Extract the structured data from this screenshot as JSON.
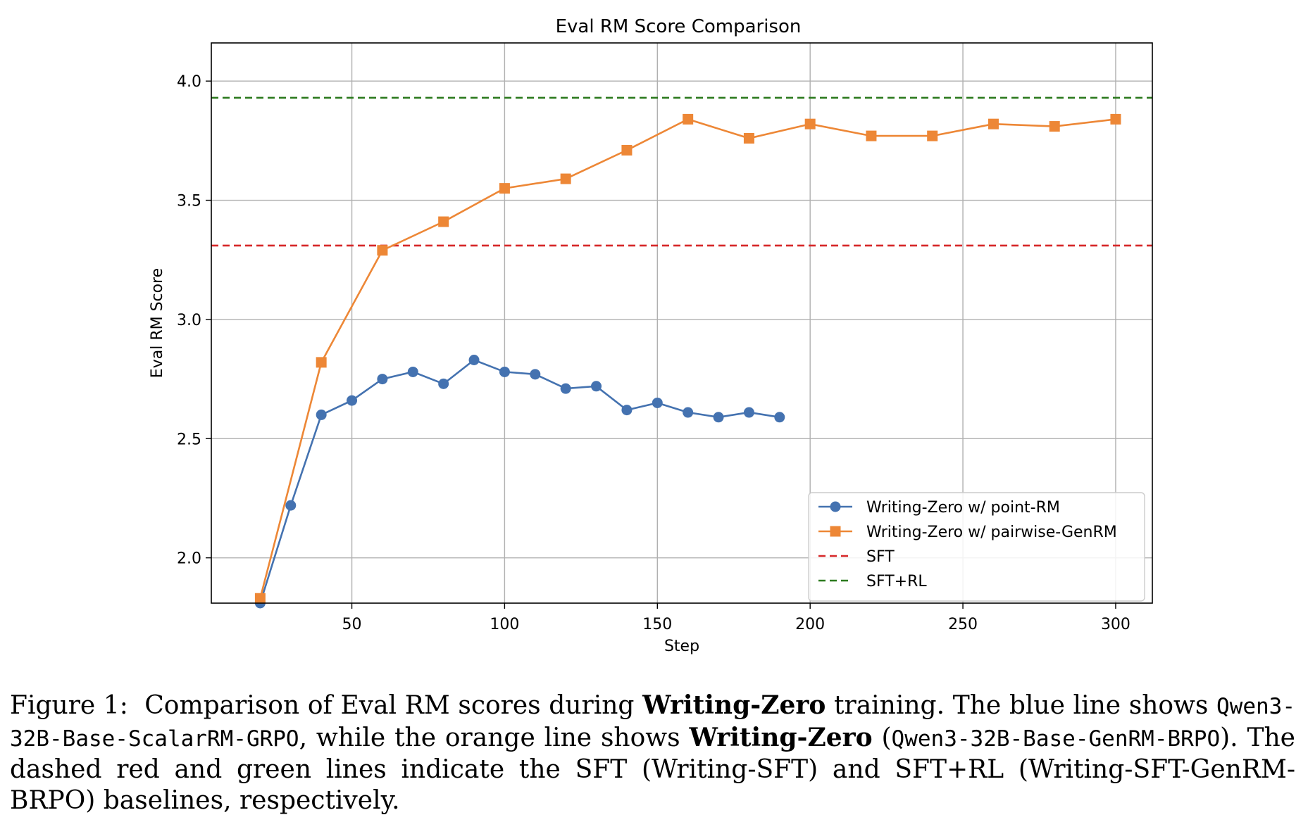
{
  "chart_data": {
    "type": "line",
    "title": "Eval RM Score Comparison",
    "xlabel": "Step",
    "ylabel": "Eval RM Score",
    "xlim": [
      4,
      312
    ],
    "ylim": [
      1.81,
      4.16
    ],
    "xticks": [
      50,
      100,
      150,
      200,
      250,
      300
    ],
    "yticks": [
      2.0,
      2.5,
      3.0,
      3.5,
      4.0
    ],
    "xtick_labels": [
      "50",
      "100",
      "150",
      "200",
      "250",
      "300"
    ],
    "ytick_labels": [
      "2.0",
      "2.5",
      "3.0",
      "3.5",
      "4.0"
    ],
    "grid": true,
    "legend_position": "lower right",
    "series": [
      {
        "name": "Writing-Zero w/ point-RM",
        "color": "#4472B0",
        "marker": "circle",
        "x": [
          20,
          30,
          40,
          50,
          60,
          70,
          80,
          90,
          100,
          110,
          120,
          130,
          140,
          150,
          160,
          170,
          180,
          190
        ],
        "y": [
          1.81,
          2.22,
          2.6,
          2.66,
          2.75,
          2.78,
          2.73,
          2.83,
          2.78,
          2.77,
          2.71,
          2.72,
          2.62,
          2.65,
          2.61,
          2.59,
          2.61,
          2.59
        ]
      },
      {
        "name": "Writing-Zero w/ pairwise-GenRM",
        "color": "#ED8736",
        "marker": "square",
        "x": [
          20,
          40,
          60,
          80,
          100,
          120,
          140,
          160,
          180,
          200,
          220,
          240,
          260,
          280,
          300
        ],
        "y": [
          1.83,
          2.82,
          3.29,
          3.41,
          3.55,
          3.59,
          3.71,
          3.84,
          3.76,
          3.82,
          3.77,
          3.77,
          3.82,
          3.81,
          3.84
        ]
      }
    ],
    "hlines": [
      {
        "name": "SFT",
        "color": "#D62728",
        "y": 3.31,
        "style": "dashed"
      },
      {
        "name": "SFT+RL",
        "color": "#2C7A1E",
        "y": 3.93,
        "style": "dashed"
      }
    ]
  },
  "caption": {
    "label": "Figure 1:",
    "t1": "Comparison of Eval RM scores during",
    "b1": "Writing-Zero",
    "t2": "training. The blue line shows",
    "code1": "Qwen3-32B-Base-ScalarRM-GRPO",
    "t3": ", while the orange line shows",
    "b2": "Writing-Zero",
    "t4": "(",
    "code2": "Qwen3-32B-Base-GenRM-BRPO",
    "t5": "). The dashed red and green lines indicate the SFT (Writing-SFT) and SFT+RL (Writing-SFT-GenRM-BRPO) baselines, respectively."
  }
}
